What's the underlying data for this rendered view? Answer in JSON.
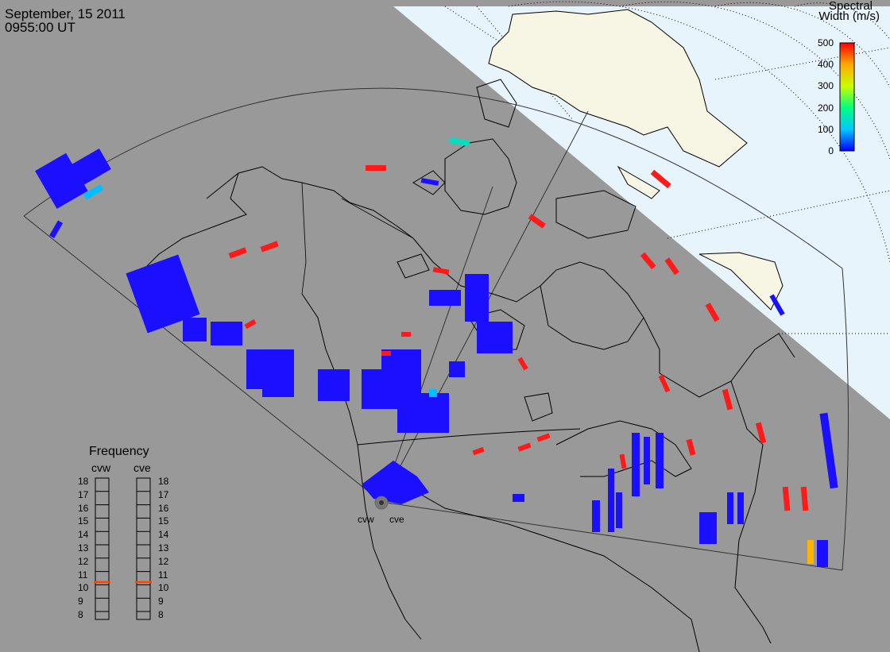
{
  "header": {
    "date": "September, 15 2011",
    "time": "0955:00 UT"
  },
  "colorbar": {
    "title_line1": "Spectral",
    "title_line2": "Width (m/s)",
    "ticks": [
      "500",
      "400",
      "300",
      "200",
      "100",
      "0"
    ],
    "colors": [
      "#0000ff",
      "#00c8ff",
      "#00ff80",
      "#c8ff00",
      "#ffaa00",
      "#ff0000"
    ]
  },
  "frequency_panel": {
    "title": "Frequency",
    "radars": [
      "cvw",
      "cve"
    ],
    "ticks": [
      "18",
      "17",
      "16",
      "15",
      "14",
      "13",
      "12",
      "11",
      "10",
      "9",
      "8"
    ],
    "values_mhz": [
      10.5,
      10.5
    ],
    "marker_color": "#ff4400"
  },
  "sites": [
    "cvw",
    "cve"
  ],
  "colors": {
    "land": "#999999",
    "daylight": "#e8f4fc",
    "ice": "#f7f5e3",
    "coast": "#000000",
    "low_width": "#1a0fff",
    "high_width": "#ff1a1a",
    "mid_width": "#00bfff",
    "mid2_width": "#00e0c0",
    "orange_width": "#ffb400"
  }
}
